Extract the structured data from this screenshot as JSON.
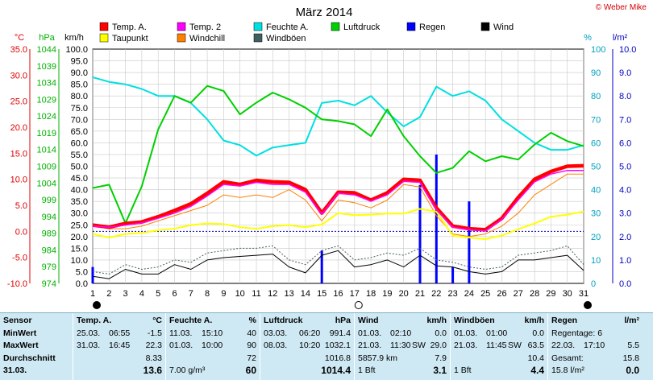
{
  "copyright": "© Weber Mike",
  "chart_data": {
    "type": "line",
    "title": "März 2014",
    "axes": {
      "temp": {
        "label": "°C",
        "min": -10,
        "max": 35,
        "ticks": [
          "35.0",
          "30.0",
          "25.0",
          "20.0",
          "15.0",
          "10.0",
          "5.0",
          "0.0",
          "-5.0",
          "-10.0"
        ],
        "color": "#e00000"
      },
      "pressure": {
        "label": "hPa",
        "min": 974,
        "max": 1044,
        "ticks": [
          "1044",
          "1039",
          "1034",
          "1029",
          "1024",
          "1019",
          "1014",
          "1009",
          "1004",
          "999",
          "994",
          "989",
          "984",
          "979",
          "974"
        ],
        "color": "#00b000"
      },
      "wind": {
        "label": "km/h",
        "min": 0,
        "max": 100,
        "ticks": [
          "100.0",
          "95.0",
          "90.0",
          "85.0",
          "80.0",
          "75.0",
          "70.0",
          "65.0",
          "60.0",
          "55.0",
          "50.0",
          "45.0",
          "40.0",
          "35.0",
          "30.0",
          "25.0",
          "20.0",
          "15.0",
          "10.0",
          "5.0",
          "0.0"
        ],
        "color": "#000000"
      },
      "humidity": {
        "label": "%",
        "min": 0,
        "max": 100,
        "ticks": [
          "100",
          "90",
          "80",
          "70",
          "60",
          "50",
          "40",
          "30",
          "20",
          "10",
          "0"
        ],
        "color": "#00a0c0"
      },
      "rain": {
        "label": "l/m²",
        "min": 0,
        "max": 10,
        "ticks": [
          "10.0",
          "9.0",
          "8.0",
          "7.0",
          "6.0",
          "5.0",
          "4.0",
          "3.0",
          "2.0",
          "1.0",
          "0.0"
        ],
        "color": "#0000c0"
      }
    },
    "x_days": [
      1,
      2,
      3,
      4,
      5,
      6,
      7,
      8,
      9,
      10,
      11,
      12,
      13,
      14,
      15,
      16,
      17,
      18,
      19,
      20,
      21,
      22,
      23,
      24,
      25,
      26,
      27,
      28,
      29,
      30,
      31
    ],
    "legend": [
      {
        "name": "Temp. A.",
        "color": "#ff0000"
      },
      {
        "name": "Temp. 2",
        "color": "#ff00ff"
      },
      {
        "name": "Feuchte A.",
        "color": "#00e0e0"
      },
      {
        "name": "Luftdruck",
        "color": "#00d000"
      },
      {
        "name": "Regen",
        "color": "#0000ff"
      },
      {
        "name": "Wind",
        "color": "#000000"
      },
      {
        "name": "Taupunkt",
        "color": "#ffff00"
      },
      {
        "name": "Windchill",
        "color": "#ff8000"
      },
      {
        "name": "Windböen",
        "color": "#406060"
      }
    ],
    "series": [
      {
        "name": "Temp. A.",
        "axis": "temp",
        "values": [
          1.2,
          0.8,
          1.5,
          1.8,
          2.8,
          4.0,
          5.3,
          7.3,
          9.5,
          9.0,
          9.8,
          9.5,
          9.4,
          8.0,
          3.5,
          7.5,
          7.4,
          6.0,
          7.4,
          10.0,
          9.8,
          4.5,
          1.0,
          0.5,
          0.3,
          2.5,
          6.5,
          10.0,
          11.5,
          12.5,
          12.6
        ]
      },
      {
        "name": "Temp. 2",
        "axis": "temp",
        "values": [
          1.0,
          0.8,
          1.2,
          1.6,
          2.5,
          3.5,
          4.8,
          6.8,
          9.0,
          8.7,
          9.4,
          9.0,
          9.0,
          7.5,
          3.3,
          7.3,
          7.0,
          5.8,
          7.0,
          9.6,
          9.4,
          4.2,
          0.8,
          0.3,
          0.1,
          2.3,
          6.0,
          9.5,
          11.0,
          11.7,
          11.7
        ]
      },
      {
        "name": "Taupunkt",
        "axis": "temp",
        "values": [
          -0.5,
          -1.2,
          -0.5,
          -0.3,
          0.2,
          0.5,
          1.2,
          1.5,
          1.4,
          0.8,
          0.5,
          1.0,
          1.2,
          0.8,
          1.3,
          3.5,
          3.1,
          3.2,
          3.4,
          3.4,
          4.3,
          3.8,
          -0.8,
          -1.2,
          -1.5,
          -0.8,
          0.4,
          1.5,
          2.8,
          3.2,
          3.8
        ]
      },
      {
        "name": "Windchill",
        "axis": "temp",
        "values": [
          1.0,
          0.5,
          0.5,
          1.0,
          2.0,
          3.0,
          4.0,
          5.0,
          7.0,
          6.5,
          7.0,
          6.5,
          8.0,
          6.0,
          2.0,
          6.0,
          5.5,
          4.5,
          6.0,
          9.0,
          8.5,
          3.0,
          -0.5,
          -1.0,
          -0.5,
          1.0,
          3.5,
          7.0,
          9.0,
          11.0,
          11.0
        ]
      },
      {
        "name": "Luftdruck",
        "axis": "pressure",
        "values": [
          1002.5,
          1003.5,
          992.0,
          1003.0,
          1020.0,
          1030.0,
          1028.0,
          1033.0,
          1031.5,
          1024.5,
          1028.0,
          1031.0,
          1029.0,
          1026.5,
          1023.0,
          1022.5,
          1021.5,
          1018.0,
          1026.0,
          1018.0,
          1012.0,
          1007.0,
          1008.5,
          1013.5,
          1010.5,
          1012.0,
          1011.0,
          1015.5,
          1019.0,
          1016.5,
          1015.0
        ]
      },
      {
        "name": "Feuchte A.",
        "axis": "humidity",
        "values": [
          88,
          86,
          85,
          83,
          80,
          80,
          77,
          70,
          61,
          59,
          54.5,
          58,
          59,
          60,
          77,
          78,
          76,
          80,
          73,
          67,
          71,
          84,
          80,
          82,
          78,
          70,
          65,
          60,
          57,
          57,
          59
        ]
      },
      {
        "name": "Wind",
        "axis": "wind",
        "values": [
          3,
          2,
          6,
          4,
          4,
          8,
          6,
          10,
          11,
          11.5,
          12,
          12.5,
          7,
          4.5,
          12,
          14,
          7,
          8,
          10,
          7,
          12,
          7.5,
          7,
          5,
          4,
          5,
          10,
          10,
          11,
          12,
          5.5
        ]
      },
      {
        "name": "Windböen",
        "axis": "wind",
        "values": [
          5,
          4,
          8,
          6,
          7,
          10,
          9,
          13,
          14,
          15,
          15,
          16,
          10,
          8,
          14,
          16,
          10,
          11,
          13,
          12,
          15,
          10,
          9,
          7,
          6,
          7,
          12,
          13,
          14,
          16,
          8
        ]
      },
      {
        "name": "Regen",
        "axis": "rain",
        "type": "bar",
        "x": [
          1,
          15,
          21,
          22,
          23,
          24
        ],
        "values": [
          0.7,
          1.4,
          4.2,
          5.5,
          0.7,
          3.5
        ]
      }
    ]
  },
  "table": {
    "labels": [
      "Sensor",
      "MinWert",
      "MaxWert",
      "Durchschnitt",
      "31.03."
    ],
    "temp": {
      "header": "Temp. A.",
      "unit": "°C",
      "rows": [
        [
          "25.03.",
          "06:55",
          "-1.5"
        ],
        [
          "31.03.",
          "16:45",
          "22.3"
        ],
        [
          "",
          "",
          "8.33"
        ],
        [
          "",
          "",
          "13.6"
        ]
      ]
    },
    "humid": {
      "header": "Feuchte A.",
      "unit": "%",
      "rows": [
        [
          "11.03.",
          "15:10",
          "40"
        ],
        [
          "01.03.",
          "10:00",
          "90"
        ],
        [
          "",
          "",
          "72"
        ],
        [
          "7.00 g/m³",
          "",
          "60"
        ]
      ]
    },
    "press": {
      "header": "Luftdruck",
      "unit": "hPa",
      "rows": [
        [
          "03.03.",
          "06:20",
          "991.4"
        ],
        [
          "08.03.",
          "10:20",
          "1032.1"
        ],
        [
          "",
          "",
          "1016.8"
        ],
        [
          "",
          "",
          "1014.4"
        ]
      ]
    },
    "wind": {
      "header": "Wind",
      "unit": "km/h",
      "rows": [
        [
          "01.03.",
          "02:10",
          "",
          "0.0"
        ],
        [
          "21.03.",
          "11:30",
          "SW",
          "29.0"
        ],
        [
          "5857.9 km",
          "",
          "",
          "7.9"
        ],
        [
          "1 Bft",
          "",
          "",
          "3.1"
        ]
      ]
    },
    "gust": {
      "header": "Windböen",
      "unit": "km/h",
      "rows": [
        [
          "01.03.",
          "01:00",
          "",
          "0.0"
        ],
        [
          "21.03.",
          "11:45",
          "SW",
          "63.5"
        ],
        [
          "",
          "",
          "",
          "10.4"
        ],
        [
          "1 Bft",
          "",
          "",
          "4.4"
        ]
      ]
    },
    "rain": {
      "header": "Regen",
      "unit": "l/m²",
      "rows": [
        [
          "Regentage: 6",
          ""
        ],
        [
          "22.03.",
          "17:10",
          "5.5"
        ],
        [
          "Gesamt:",
          "15.8"
        ],
        [
          "15.8 l/m²",
          "0.0"
        ]
      ]
    }
  }
}
